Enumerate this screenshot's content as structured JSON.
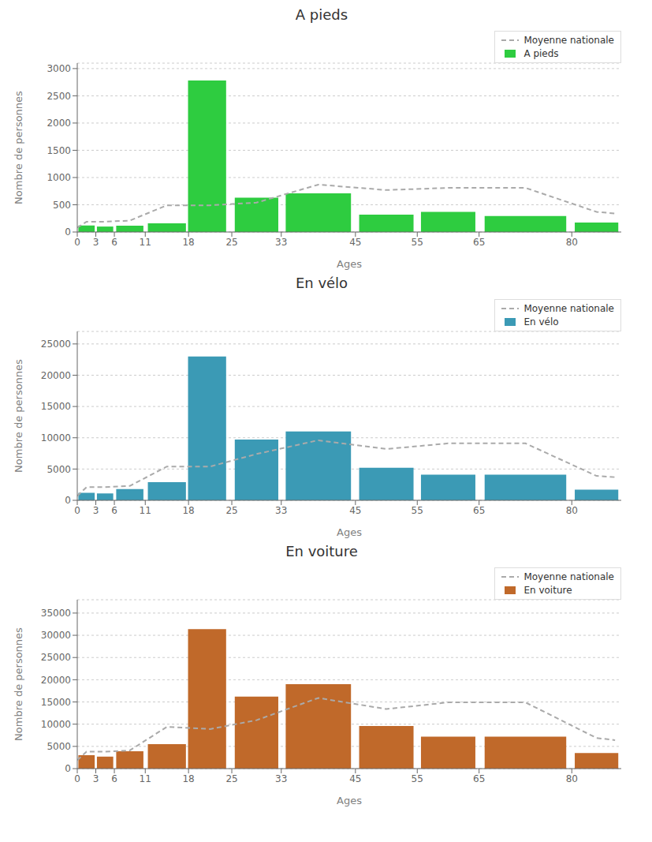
{
  "chart_data": [
    {
      "type": "bar",
      "title": "A pieds",
      "x_label": "Ages",
      "y_label": "Nombre de personnes",
      "xlim": [
        0,
        88
      ],
      "xticks": [
        0,
        3,
        6,
        11,
        18,
        25,
        33,
        45,
        55,
        65,
        80
      ],
      "ylim": [
        0,
        3100
      ],
      "yticks": [
        0,
        500,
        1000,
        1500,
        2000,
        2500,
        3000
      ],
      "grid": true,
      "legend": "upper right",
      "series": [
        {
          "name": "Moyenne nationale",
          "type": "line",
          "line_style": "dashed",
          "color": "#aaaaaa",
          "x": [
            0,
            1.5,
            4.5,
            8.5,
            14.5,
            21.5,
            29.0,
            39.0,
            50.0,
            60.0,
            72.5,
            84.0,
            87
          ],
          "values": [
            80,
            190,
            190,
            210,
            490,
            490,
            540,
            870,
            770,
            810,
            810,
            370,
            340
          ]
        },
        {
          "name": "A pieds",
          "type": "bar",
          "color": "#2ecc40",
          "x": [
            1.5,
            4.5,
            8.5,
            14.5,
            21.0,
            29.0,
            39.0,
            50.0,
            60.0,
            72.5,
            84.0
          ],
          "widths": [
            3,
            3,
            5,
            7,
            7,
            8,
            12,
            10,
            10,
            15,
            8
          ],
          "values": [
            120,
            100,
            115,
            160,
            2780,
            630,
            710,
            320,
            370,
            295,
            175
          ]
        }
      ]
    },
    {
      "type": "bar",
      "title": "En vélo",
      "x_label": "Ages",
      "y_label": "Nombre de personnes",
      "xlim": [
        0,
        88
      ],
      "xticks": [
        0,
        3,
        6,
        11,
        18,
        25,
        33,
        45,
        55,
        65,
        80
      ],
      "ylim": [
        0,
        27000
      ],
      "yticks": [
        0,
        5000,
        10000,
        15000,
        20000,
        25000
      ],
      "grid": true,
      "legend": "upper right",
      "series": [
        {
          "name": "Moyenne nationale",
          "type": "line",
          "line_style": "dashed",
          "color": "#aaaaaa",
          "x": [
            0,
            1.5,
            4.5,
            8.5,
            14.5,
            21.5,
            29.0,
            39.0,
            50.0,
            60.0,
            72.5,
            84.0,
            87
          ],
          "values": [
            700,
            2100,
            2100,
            2300,
            5400,
            5400,
            7400,
            9600,
            8200,
            9100,
            9100,
            3900,
            3700
          ]
        },
        {
          "name": "En vélo",
          "type": "bar",
          "color": "#3b9ab5",
          "x": [
            1.5,
            4.5,
            8.5,
            14.5,
            21.0,
            29.0,
            39.0,
            50.0,
            60.0,
            72.5,
            84.0
          ],
          "widths": [
            3,
            3,
            5,
            7,
            7,
            8,
            12,
            10,
            10,
            15,
            8
          ],
          "values": [
            1200,
            1100,
            1800,
            2900,
            23000,
            9700,
            11000,
            5200,
            4100,
            4100,
            1700
          ]
        }
      ]
    },
    {
      "type": "bar",
      "title": "En voiture",
      "x_label": "Ages",
      "y_label": "Nombre de personnes",
      "xlim": [
        0,
        88
      ],
      "xticks": [
        0,
        3,
        6,
        11,
        18,
        25,
        33,
        45,
        55,
        65,
        80
      ],
      "ylim": [
        0,
        38000
      ],
      "yticks": [
        0,
        5000,
        10000,
        15000,
        20000,
        25000,
        30000,
        35000
      ],
      "grid": true,
      "legend": "upper right",
      "series": [
        {
          "name": "Moyenne nationale",
          "type": "line",
          "line_style": "dashed",
          "color": "#aaaaaa",
          "x": [
            0,
            1.5,
            4.5,
            8.5,
            14.5,
            21.5,
            29.0,
            39.0,
            50.0,
            60.0,
            72.5,
            84.0,
            87
          ],
          "values": [
            1900,
            3800,
            3800,
            4100,
            9400,
            8900,
            10900,
            15900,
            13400,
            14900,
            14900,
            6900,
            6400
          ]
        },
        {
          "name": "En voiture",
          "type": "bar",
          "color": "#c0692a",
          "x": [
            1.5,
            4.5,
            8.5,
            14.5,
            21.0,
            29.0,
            39.0,
            50.0,
            60.0,
            72.5,
            84.0
          ],
          "widths": [
            3,
            3,
            5,
            7,
            7,
            8,
            12,
            10,
            10,
            15,
            8
          ],
          "values": [
            3000,
            2700,
            3900,
            5500,
            31400,
            16200,
            19000,
            9600,
            7200,
            7200,
            3500
          ]
        }
      ]
    }
  ]
}
